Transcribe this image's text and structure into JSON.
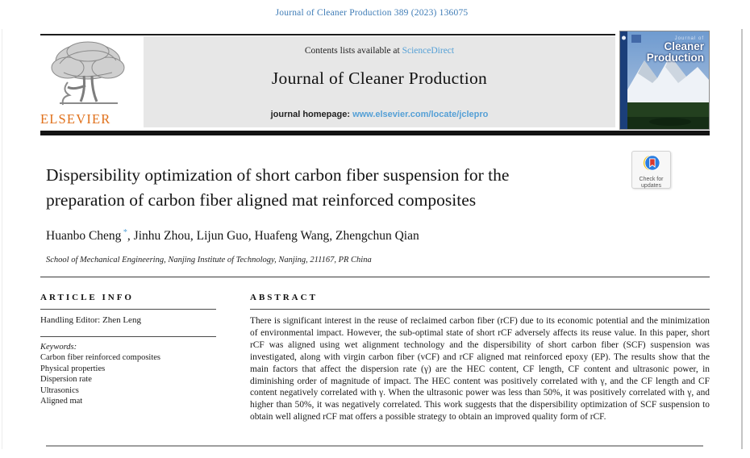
{
  "page": {
    "citation": "Journal of Cleaner Production 389 (2023) 136075"
  },
  "masthead": {
    "contents_prefix": "Contents lists available at ",
    "contents_link": "ScienceDirect",
    "journal_title": "Journal of Cleaner Production",
    "homepage_prefix": "journal homepage: ",
    "homepage_link": "www.elsevier.com/locate/jclepro",
    "publisher_word": "ELSEVIER",
    "cover": {
      "kicker": "Journal of",
      "line1": "Cleaner",
      "line2": "Production"
    }
  },
  "badge": {
    "line1": "Check for",
    "line2": "updates"
  },
  "article": {
    "title_line1": "Dispersibility optimization of short carbon fiber suspension for the",
    "title_line2": "preparation of carbon fiber aligned mat reinforced composites",
    "authors": [
      {
        "name": "Huanbo Cheng",
        "marker": "*"
      },
      {
        "name": "Jinhu Zhou",
        "marker": ""
      },
      {
        "name": "Lijun Guo",
        "marker": ""
      },
      {
        "name": "Huafeng Wang",
        "marker": ""
      },
      {
        "name": "Zhengchun Qian",
        "marker": ""
      }
    ],
    "affiliation": "School of Mechanical Engineering, Nanjing Institute of Technology, Nanjing, 211167, PR China"
  },
  "article_info": {
    "heading": "ARTICLE INFO",
    "handling_editor": "Handling Editor: Zhen Leng",
    "keywords_label": "Keywords:",
    "keywords": [
      "Carbon fiber reinforced composites",
      "Physical properties",
      "Dispersion rate",
      "Ultrasonics",
      "Aligned mat"
    ]
  },
  "abstract": {
    "heading": "ABSTRACT",
    "text": "There is significant interest in the reuse of reclaimed carbon fiber (rCF) due to its economic potential and the minimization of environmental impact. However, the sub-optimal state of short rCF adversely affects its reuse value. In this paper, short rCF was aligned using wet alignment technology and the dispersibility of short carbon fiber (SCF) suspension was investigated, along with virgin carbon fiber (vCF) and rCF aligned mat reinforced epoxy (EP). The results show that the main factors that affect the dispersion rate (γ) are the HEC content, CF length, CF content and ultrasonic power, in diminishing order of magnitude of impact. The HEC content was positively correlated with γ, and the CF length and CF content negatively correlated with γ. When the ultrasonic power was less than 50%, it was positively correlated with γ, and higher than 50%, it was negatively correlated. This work suggests that the dispersibility optimization of SCF suspension to obtain well aligned rCF mat offers a possible strategy to obtain an improved quality form of rCF."
  },
  "colors": {
    "citation_blue": "#3f7cb6",
    "link_blue": "#55a0d6",
    "elsevier_orange": "#e0701a",
    "masthead_gray": "#e7e7e7",
    "crossmark_blue": "#2b7de0",
    "crossmark_yellow": "#f0c419",
    "crossmark_red": "#d8382e"
  }
}
